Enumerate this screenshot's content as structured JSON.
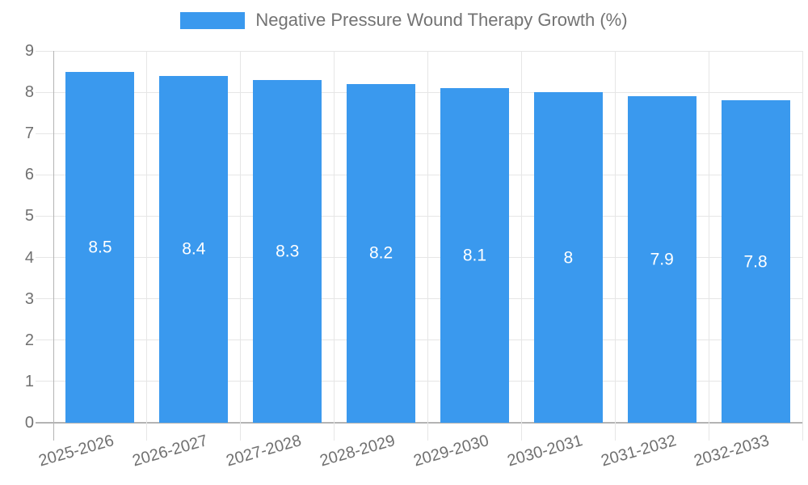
{
  "legend": {
    "label": "Negative Pressure Wound Therapy Growth (%)"
  },
  "chart_data": {
    "type": "bar",
    "title": "Negative Pressure Wound Therapy Growth (%)",
    "categories": [
      "2025-2026",
      "2026-2027",
      "2027-2028",
      "2028-2029",
      "2029-2030",
      "2030-2031",
      "2031-2032",
      "2032-2033"
    ],
    "values": [
      8.5,
      8.4,
      8.3,
      8.2,
      8.1,
      8,
      7.9,
      7.8
    ],
    "value_labels": [
      "8.5",
      "8.4",
      "8.3",
      "8.2",
      "8.1",
      "8",
      "7.9",
      "7.8"
    ],
    "xlabel": "",
    "ylabel": "",
    "ylim": [
      0,
      9
    ],
    "yticks": [
      0,
      1,
      2,
      3,
      4,
      5,
      6,
      7,
      8,
      9
    ],
    "grid": true,
    "legend_position": "top",
    "bar_color": "#3A99EE",
    "value_label_color": "#ffffff",
    "grid_color": "#e6e6e6",
    "axis_line_color": "#b4b4b4",
    "tick_label_color": "#707070"
  }
}
